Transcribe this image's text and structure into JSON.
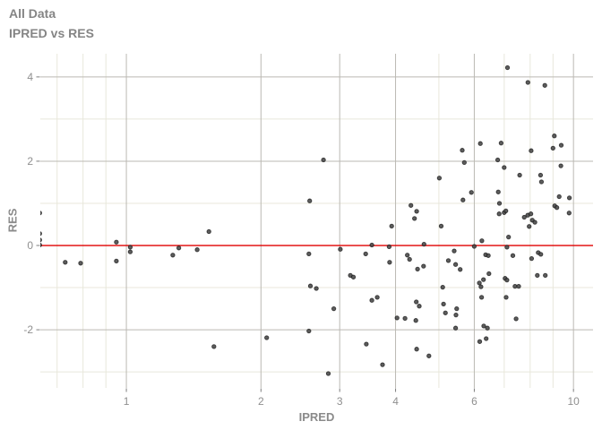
{
  "header": {
    "title": "All Data",
    "subtitle": "IPRED vs RES"
  },
  "colors": {
    "title_text": "#858585",
    "axis_title_text": "#8a8a8a",
    "tick_label_text": "#8f8f8f",
    "grid_major": "#bbb9b3",
    "grid_minor": "#e8e7db",
    "tick_mark": "#7d7d7d",
    "ref_line": "#e00000",
    "point_fill": "#454545",
    "point_stroke": "#181818",
    "background": "#ffffff"
  },
  "chart_data": {
    "type": "scatter",
    "title": "All Data",
    "subtitle": "IPRED vs RES",
    "xlabel": "IPRED",
    "ylabel": "RES",
    "x_scale": "log10",
    "x_domain": [
      0.642,
      11.06
    ],
    "y_domain": [
      -3.38,
      4.55
    ],
    "x_breaks": [
      1,
      2,
      3,
      4,
      6,
      10
    ],
    "x_break_labels": [
      "1",
      "2",
      "3",
      "4",
      "6",
      "10"
    ],
    "x_minor_breaks": [
      0.7,
      0.8,
      0.9,
      5,
      7,
      8,
      9
    ],
    "y_breaks": [
      -2,
      0,
      2,
      4
    ],
    "y_break_labels": [
      "-2",
      "0",
      "2",
      "4"
    ],
    "y_minor_breaks": [
      -3,
      -1,
      1,
      3
    ],
    "ref_line_y": 0,
    "grid": true,
    "legend": "none",
    "point_radius": 2.2,
    "points": [
      [
        0.64,
        0.77
      ],
      [
        0.64,
        0.28
      ],
      [
        0.64,
        0.13
      ],
      [
        0.64,
        0.01
      ],
      [
        0.73,
        -0.4
      ],
      [
        0.79,
        -0.42
      ],
      [
        0.95,
        0.08
      ],
      [
        0.95,
        -0.37
      ],
      [
        1.02,
        -0.04
      ],
      [
        1.02,
        -0.15
      ],
      [
        1.27,
        -0.23
      ],
      [
        1.31,
        -0.06
      ],
      [
        1.44,
        -0.1
      ],
      [
        1.53,
        0.33
      ],
      [
        1.57,
        -2.4
      ],
      [
        2.06,
        -2.19
      ],
      [
        2.56,
        -0.2
      ],
      [
        2.56,
        -2.03
      ],
      [
        2.57,
        1.06
      ],
      [
        2.58,
        -0.96
      ],
      [
        2.66,
        -1.02
      ],
      [
        2.76,
        2.03
      ],
      [
        2.83,
        -3.04
      ],
      [
        2.91,
        -1.5
      ],
      [
        3.01,
        -0.09
      ],
      [
        3.17,
        -0.71
      ],
      [
        3.22,
        -0.75
      ],
      [
        3.43,
        -0.2
      ],
      [
        3.44,
        -2.34
      ],
      [
        3.54,
        0.01
      ],
      [
        3.54,
        -1.3
      ],
      [
        3.64,
        -1.23
      ],
      [
        3.74,
        -2.83
      ],
      [
        3.87,
        -0.03
      ],
      [
        3.88,
        -0.4
      ],
      [
        3.92,
        0.46
      ],
      [
        4.03,
        -1.72
      ],
      [
        4.2,
        -1.73
      ],
      [
        4.25,
        -0.23
      ],
      [
        4.3,
        -0.33
      ],
      [
        4.33,
        0.95
      ],
      [
        4.41,
        0.64
      ],
      [
        4.44,
        -1.78
      ],
      [
        4.45,
        -1.34
      ],
      [
        4.46,
        0.81
      ],
      [
        4.46,
        -2.46
      ],
      [
        4.48,
        -0.56
      ],
      [
        4.52,
        -1.44
      ],
      [
        4.62,
        -0.49
      ],
      [
        4.63,
        0.03
      ],
      [
        4.75,
        -2.62
      ],
      [
        5.01,
        1.6
      ],
      [
        5.06,
        0.46
      ],
      [
        5.1,
        -0.99
      ],
      [
        5.12,
        -1.39
      ],
      [
        5.17,
        -1.6
      ],
      [
        5.25,
        -0.36
      ],
      [
        5.41,
        -0.13
      ],
      [
        5.45,
        -0.45
      ],
      [
        5.45,
        -1.96
      ],
      [
        5.46,
        -1.65
      ],
      [
        5.48,
        -1.5
      ],
      [
        5.58,
        -0.57
      ],
      [
        5.64,
        2.26
      ],
      [
        5.66,
        1.08
      ],
      [
        5.7,
        1.97
      ],
      [
        5.91,
        1.26
      ],
      [
        6.0,
        -0.02
      ],
      [
        6.16,
        -0.89
      ],
      [
        6.17,
        -2.28
      ],
      [
        6.19,
        2.42
      ],
      [
        6.21,
        -0.98
      ],
      [
        6.23,
        -1.23
      ],
      [
        6.24,
        0.11
      ],
      [
        6.29,
        -0.81
      ],
      [
        6.3,
        -1.91
      ],
      [
        6.36,
        -0.22
      ],
      [
        6.38,
        -2.21
      ],
      [
        6.42,
        -1.96
      ],
      [
        6.45,
        -0.24
      ],
      [
        6.47,
        -0.67
      ],
      [
        6.77,
        2.03
      ],
      [
        6.79,
        1.27
      ],
      [
        6.82,
        0.75
      ],
      [
        6.83,
        1.0
      ],
      [
        6.89,
        2.43
      ],
      [
        7.0,
        1.85
      ],
      [
        7.0,
        0.78
      ],
      [
        7.03,
        -0.78
      ],
      [
        7.06,
        0.82
      ],
      [
        7.07,
        -1.23
      ],
      [
        7.1,
        -0.82
      ],
      [
        7.1,
        -0.04
      ],
      [
        7.12,
        4.22
      ],
      [
        7.16,
        0.2
      ],
      [
        7.32,
        -0.24
      ],
      [
        7.4,
        -0.97
      ],
      [
        7.44,
        -1.74
      ],
      [
        7.54,
        -0.97
      ],
      [
        7.58,
        1.67
      ],
      [
        7.76,
        0.67
      ],
      [
        7.9,
        0.72
      ],
      [
        7.91,
        3.87
      ],
      [
        7.96,
        0.45
      ],
      [
        8.03,
        0.75
      ],
      [
        8.04,
        2.25
      ],
      [
        8.06,
        -0.31
      ],
      [
        8.09,
        0.6
      ],
      [
        8.2,
        0.55
      ],
      [
        8.3,
        -0.71
      ],
      [
        8.34,
        -0.17
      ],
      [
        8.44,
        1.67
      ],
      [
        8.45,
        -0.21
      ],
      [
        8.48,
        1.51
      ],
      [
        8.63,
        3.8
      ],
      [
        8.65,
        -0.71
      ],
      [
        9.0,
        2.31
      ],
      [
        9.06,
        2.6
      ],
      [
        9.08,
        0.94
      ],
      [
        9.18,
        0.9
      ],
      [
        9.29,
        1.16
      ],
      [
        9.37,
        1.89
      ],
      [
        9.39,
        2.38
      ],
      [
        9.78,
        0.77
      ],
      [
        9.79,
        1.13
      ]
    ]
  }
}
